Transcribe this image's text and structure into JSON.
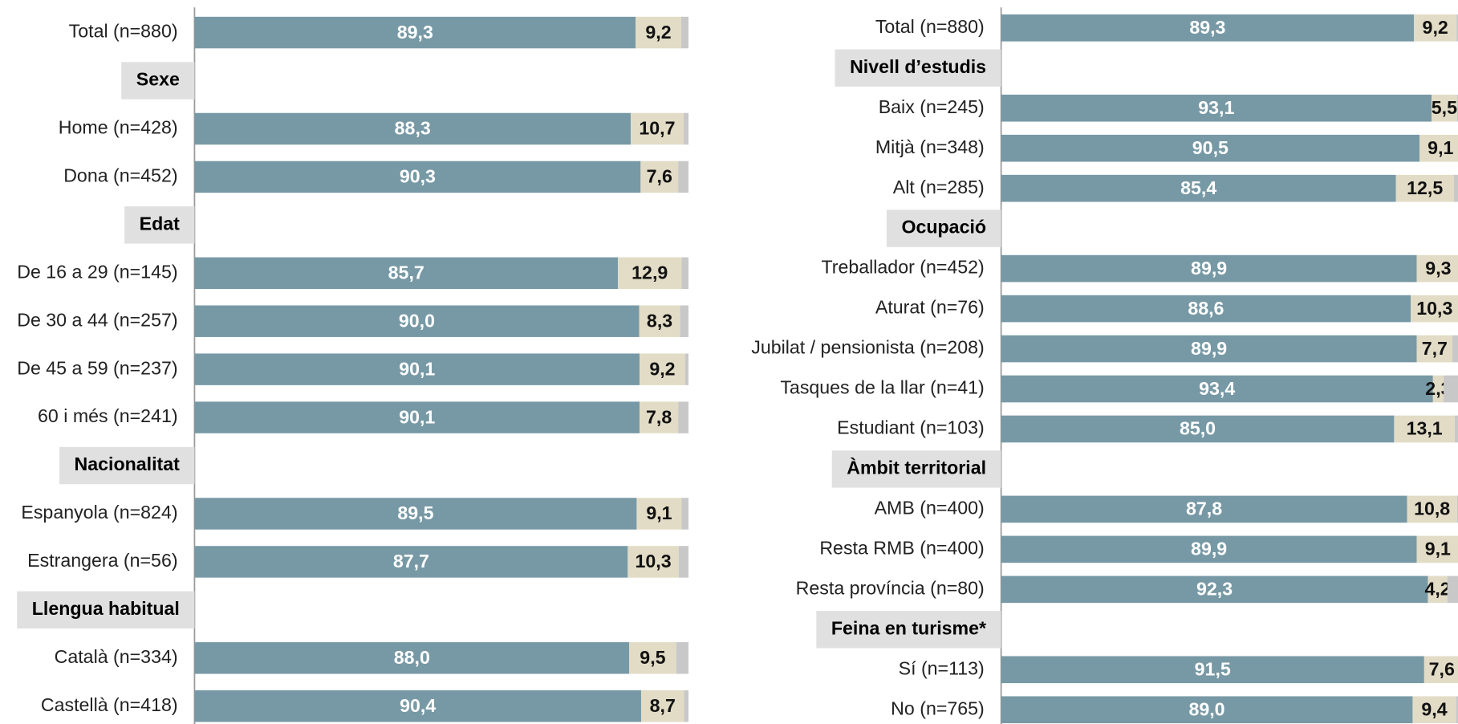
{
  "chart_data": [
    {
      "type": "bar",
      "orientation": "horizontal",
      "stacked": true,
      "xlim": [
        0,
        100
      ],
      "colors": [
        "#7799a5",
        "#e2dcc6",
        "#c8c8c8"
      ],
      "groups": [
        {
          "categories": [
            "Total (n=880)"
          ],
          "series": [
            {
              "values": [
                89.3
              ],
              "value_labels": [
                "89,3"
              ]
            },
            {
              "values": [
                9.2
              ],
              "value_labels": [
                "9,2"
              ]
            },
            {
              "values": [
                1.5
              ]
            }
          ]
        },
        {
          "header": "Sexe",
          "categories": [
            "Home (n=428)",
            "Dona (n=452)"
          ],
          "series": [
            {
              "values": [
                88.3,
                90.3
              ],
              "value_labels": [
                "88,3",
                "90,3"
              ]
            },
            {
              "values": [
                10.7,
                7.6
              ],
              "value_labels": [
                "10,7",
                "7,6"
              ]
            },
            {
              "values": [
                1.0,
                2.1
              ]
            }
          ]
        },
        {
          "header": "Edat",
          "categories": [
            "De 16 a 29 (n=145)",
            "De 30 a 44 (n=257)",
            "De 45 a 59 (n=237)",
            "60 i més (n=241)"
          ],
          "series": [
            {
              "values": [
                85.7,
                90.0,
                90.1,
                90.1
              ],
              "value_labels": [
                "85,7",
                "90,0",
                "90,1",
                "90,1"
              ]
            },
            {
              "values": [
                12.9,
                8.3,
                9.2,
                7.8
              ],
              "value_labels": [
                "12,9",
                "8,3",
                "9,2",
                "7,8"
              ]
            },
            {
              "values": [
                1.4,
                1.7,
                0.7,
                2.1
              ]
            }
          ]
        },
        {
          "header": "Nacionalitat",
          "categories": [
            "Espanyola (n=824)",
            "Estrangera (n=56)"
          ],
          "series": [
            {
              "values": [
                89.5,
                87.7
              ],
              "value_labels": [
                "89,5",
                "87,7"
              ]
            },
            {
              "values": [
                9.1,
                10.3
              ],
              "value_labels": [
                "9,1",
                "10,3"
              ]
            },
            {
              "values": [
                1.4,
                2.0
              ]
            }
          ]
        },
        {
          "header": "Llengua habitual",
          "categories": [
            "Català (n=334)",
            "Castellà (n=418)"
          ],
          "series": [
            {
              "values": [
                88.0,
                90.4
              ],
              "value_labels": [
                "88,0",
                "90,4"
              ]
            },
            {
              "values": [
                9.5,
                8.7
              ],
              "value_labels": [
                "9,5",
                "8,7"
              ]
            },
            {
              "values": [
                2.5,
                0.9
              ]
            }
          ]
        }
      ]
    },
    {
      "type": "bar",
      "orientation": "horizontal",
      "stacked": true,
      "xlim": [
        0,
        100
      ],
      "colors": [
        "#7799a5",
        "#e2dcc6",
        "#c8c8c8"
      ],
      "groups": [
        {
          "categories": [
            "Total (n=880)"
          ],
          "series": [
            {
              "values": [
                89.3
              ],
              "value_labels": [
                "89,3"
              ]
            },
            {
              "values": [
                9.2
              ],
              "value_labels": [
                "9,2"
              ]
            },
            {
              "values": [
                1.5
              ]
            }
          ]
        },
        {
          "header": "Nivell d’estudis",
          "categories": [
            "Baix (n=245)",
            "Mitjà (n=348)",
            "Alt (n=285)"
          ],
          "series": [
            {
              "values": [
                93.1,
                90.5,
                85.4
              ],
              "value_labels": [
                "93,1",
                "90,5",
                "85,4"
              ]
            },
            {
              "values": [
                5.5,
                9.1,
                12.5
              ],
              "value_labels": [
                "5,5",
                "9,1",
                "12,5"
              ]
            },
            {
              "values": [
                1.4,
                0.4,
                2.1
              ]
            }
          ]
        },
        {
          "header": "Ocupació",
          "categories": [
            "Treballador (n=452)",
            "Aturat (n=76)",
            "Jubilat / pensionista (n=208)",
            "Tasques de la llar (n=41)",
            "Estudiant (n=103)"
          ],
          "series": [
            {
              "values": [
                89.9,
                88.6,
                89.9,
                93.4,
                85.0
              ],
              "value_labels": [
                "89,9",
                "88,6",
                "89,9",
                "93,4",
                "85,0"
              ]
            },
            {
              "values": [
                9.3,
                10.3,
                7.7,
                2.3,
                13.1
              ],
              "value_labels": [
                "9,3",
                "10,3",
                "7,7",
                "2,3",
                "13,1"
              ]
            },
            {
              "values": [
                0.8,
                1.1,
                2.4,
                4.3,
                1.9
              ]
            }
          ]
        },
        {
          "header": "Àmbit territorial",
          "categories": [
            "AMB (n=400)",
            "Resta RMB (n=400)",
            "Resta província (n=80)"
          ],
          "series": [
            {
              "values": [
                87.8,
                89.9,
                92.3
              ],
              "value_labels": [
                "87,8",
                "89,9",
                "92,3"
              ]
            },
            {
              "values": [
                10.8,
                9.1,
                4.2
              ],
              "value_labels": [
                "10,8",
                "9,1",
                "4,2"
              ]
            },
            {
              "values": [
                1.4,
                1.0,
                3.5
              ]
            }
          ]
        },
        {
          "header": "Feina en turisme*",
          "categories": [
            "Sí (n=113)",
            "No (n=765)"
          ],
          "series": [
            {
              "values": [
                91.5,
                89.0
              ],
              "value_labels": [
                "91,5",
                "89,0"
              ]
            },
            {
              "values": [
                7.6,
                9.4
              ],
              "value_labels": [
                "7,6",
                "9,4"
              ]
            },
            {
              "values": [
                0.9,
                1.6
              ]
            }
          ]
        }
      ]
    }
  ]
}
